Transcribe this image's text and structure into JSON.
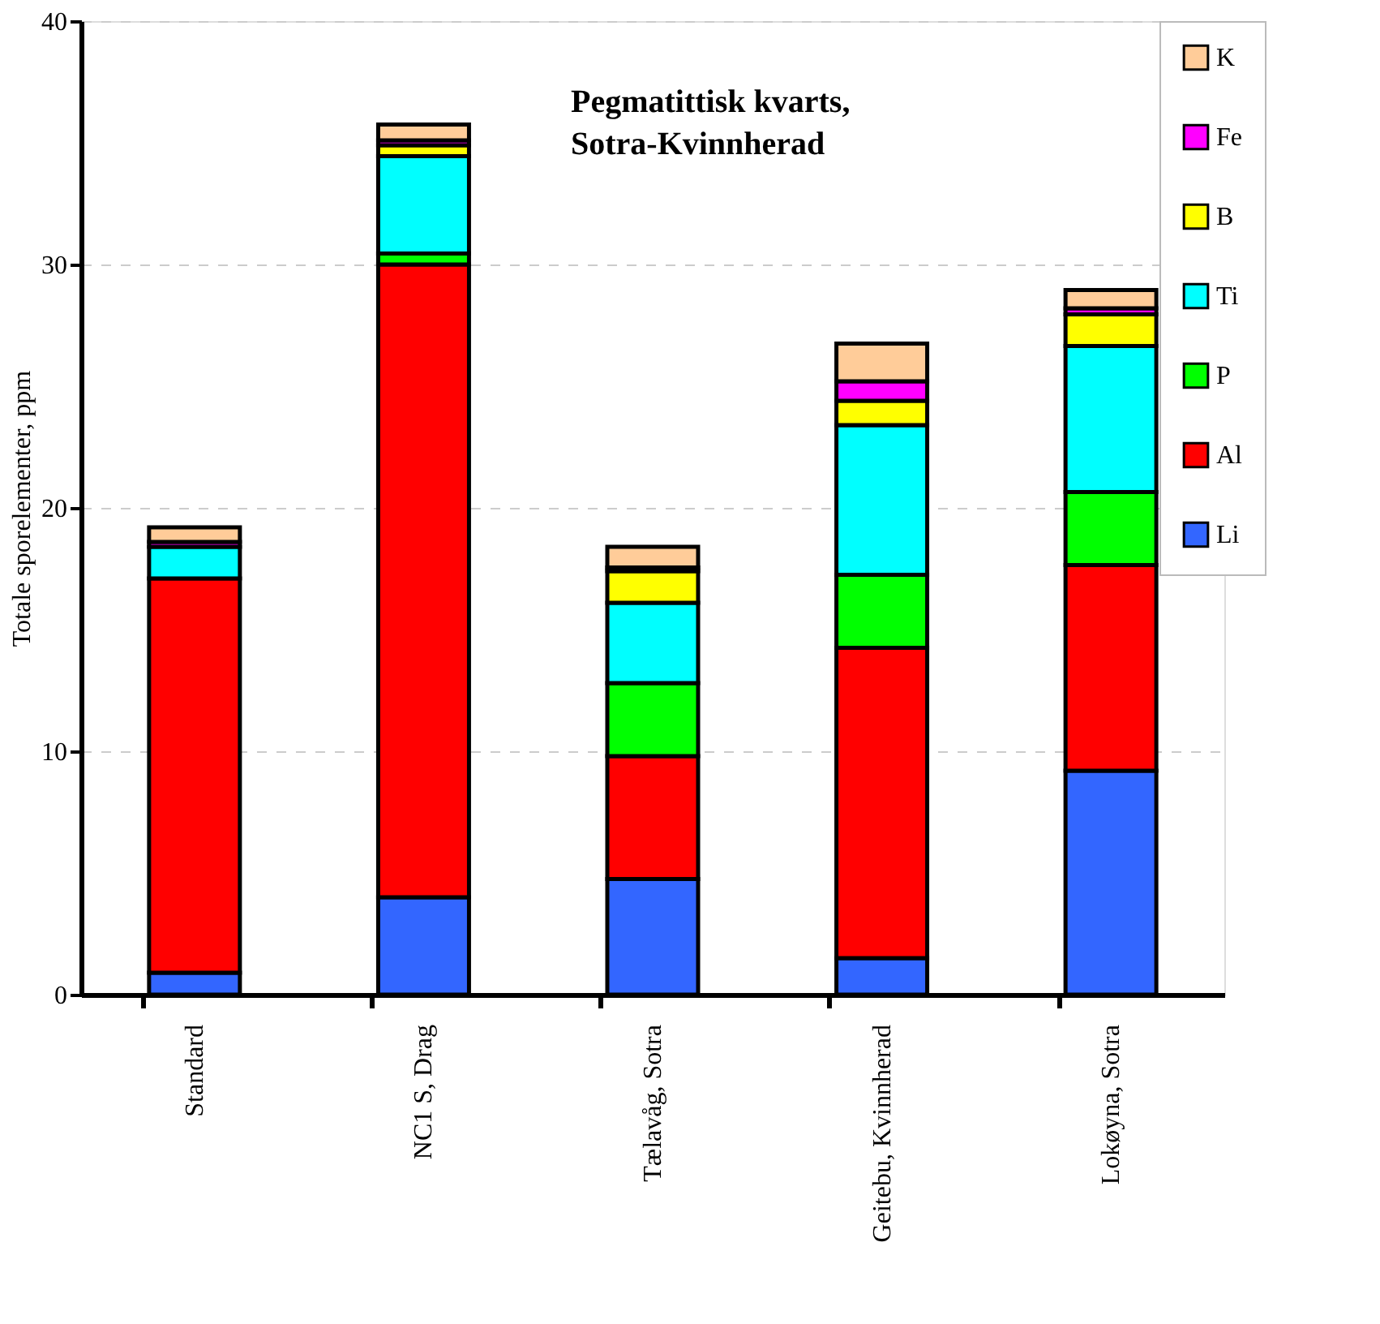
{
  "chart_data": {
    "type": "bar",
    "stacked": true,
    "title": "Pegmatittisk kvarts,\nSotra-Kvinnherad",
    "ylabel": "Totale sporelementer, ppm",
    "categories": [
      "Standard",
      "NC1 S, Drag",
      "Tælavåg, Sotra",
      "Geitebu, Kvinnherad",
      "Lokøyna, Sotra"
    ],
    "series": [
      {
        "name": "Li",
        "color": "#3366ff",
        "values": [
          0.9,
          4.0,
          4.75,
          1.5,
          9.2
        ]
      },
      {
        "name": "Al",
        "color": "#ff0000",
        "values": [
          16.2,
          26.0,
          5.05,
          12.75,
          8.45
        ]
      },
      {
        "name": "P",
        "color": "#00ff00",
        "values": [
          null,
          0.45,
          3.0,
          3.0,
          3.0
        ]
      },
      {
        "name": "Ti",
        "color": "#00ffff",
        "values": [
          1.3,
          4.0,
          3.3,
          6.15,
          6.0
        ]
      },
      {
        "name": "B",
        "color": "#ffff00",
        "values": [
          null,
          0.45,
          1.3,
          1.0,
          1.3
        ]
      },
      {
        "name": "Fe",
        "color": "#ff00ff",
        "values": [
          0.2,
          0.2,
          0.15,
          0.8,
          0.25
        ]
      },
      {
        "name": "K",
        "color": "#ffcc99",
        "values": [
          0.6,
          0.65,
          0.85,
          1.55,
          0.75
        ]
      }
    ],
    "ylim": [
      0,
      40
    ],
    "yticks": [
      0,
      10,
      20,
      30,
      40
    ],
    "grid": "y",
    "legend": "right"
  }
}
